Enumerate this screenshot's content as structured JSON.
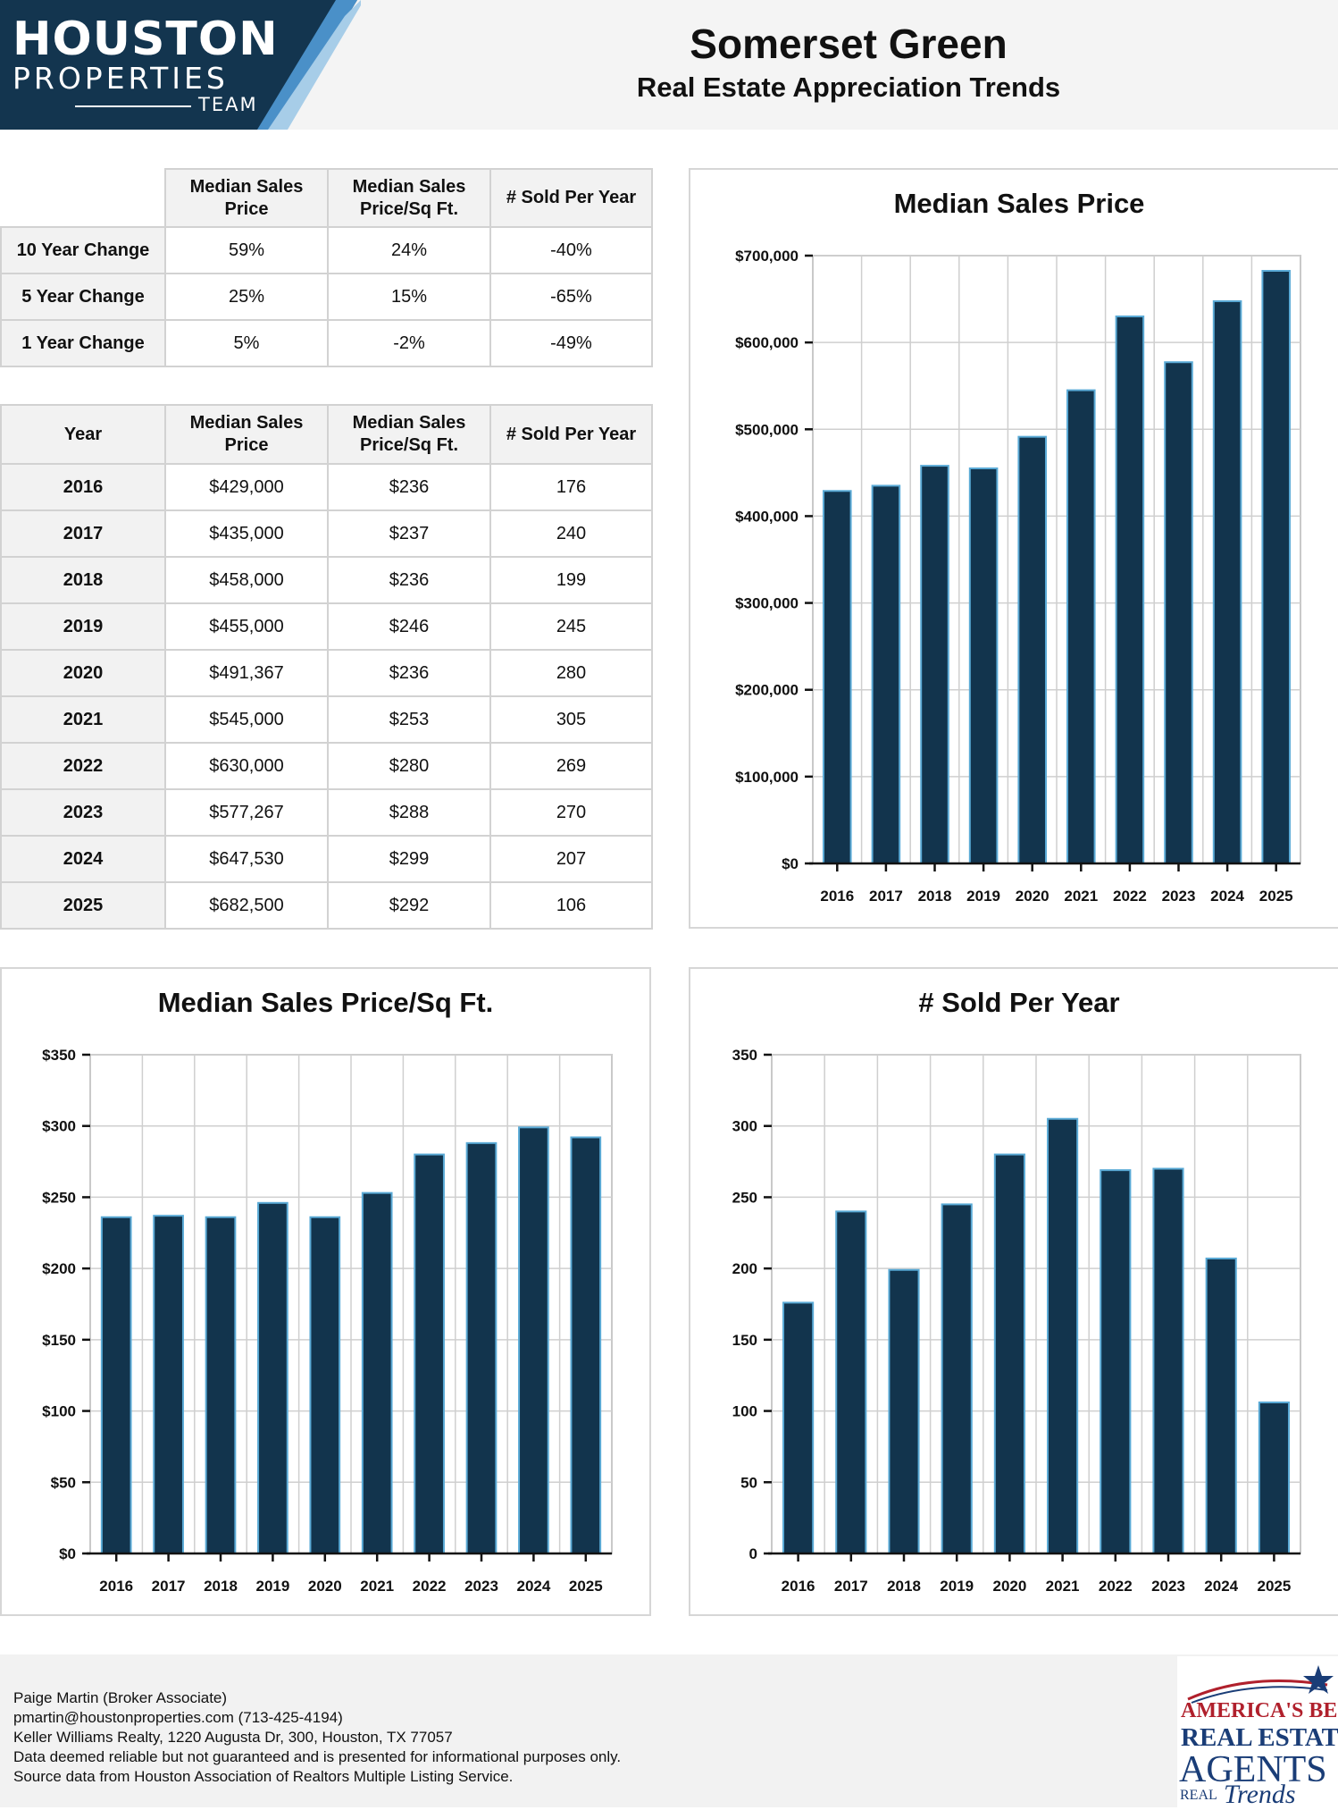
{
  "brand": {
    "line1": "HOUSTON",
    "line2": "PROPERTIES",
    "line3": "TEAM",
    "colors": {
      "navy": "#13354f",
      "light_blue": "#a7cde8",
      "mid_blue": "#4a90c8"
    }
  },
  "header": {
    "title": "Somerset Green",
    "subtitle": "Real Estate Appreciation Trends"
  },
  "change_table": {
    "columns": [
      "Median Sales Price",
      "Median Sales Price/Sq Ft.",
      "# Sold Per Year"
    ],
    "rows": [
      {
        "label": "10 Year Change",
        "price": "59%",
        "sqft": "24%",
        "sold": "-40%"
      },
      {
        "label": "5 Year Change",
        "price": "25%",
        "sqft": "15%",
        "sold": "-65%"
      },
      {
        "label": "1 Year Change",
        "price": "5%",
        "sqft": "-2%",
        "sold": "-49%"
      }
    ]
  },
  "year_table": {
    "columns": [
      "Year",
      "Median Sales Price",
      "Median Sales Price/Sq Ft.",
      "# Sold Per Year"
    ],
    "rows": [
      {
        "year": "2016",
        "price": "$429,000",
        "sqft": "$236",
        "sold": "176"
      },
      {
        "year": "2017",
        "price": "$435,000",
        "sqft": "$237",
        "sold": "240"
      },
      {
        "year": "2018",
        "price": "$458,000",
        "sqft": "$236",
        "sold": "199"
      },
      {
        "year": "2019",
        "price": "$455,000",
        "sqft": "$246",
        "sold": "245"
      },
      {
        "year": "2020",
        "price": "$491,367",
        "sqft": "$236",
        "sold": "280"
      },
      {
        "year": "2021",
        "price": "$545,000",
        "sqft": "$253",
        "sold": "305"
      },
      {
        "year": "2022",
        "price": "$630,000",
        "sqft": "$280",
        "sold": "269"
      },
      {
        "year": "2023",
        "price": "$577,267",
        "sqft": "$288",
        "sold": "270"
      },
      {
        "year": "2024",
        "price": "$647,530",
        "sqft": "$299",
        "sold": "207"
      },
      {
        "year": "2025",
        "price": "$682,500",
        "sqft": "$292",
        "sold": "106"
      }
    ]
  },
  "chart_data": [
    {
      "id": "price",
      "type": "bar",
      "title": "Median Sales Price",
      "categories": [
        "2016",
        "2017",
        "2018",
        "2019",
        "2020",
        "2021",
        "2022",
        "2023",
        "2024",
        "2025"
      ],
      "values": [
        429000,
        435000,
        458000,
        455000,
        491367,
        545000,
        630000,
        577267,
        647530,
        682500
      ],
      "ylim": [
        0,
        700000
      ],
      "yticks": [
        0,
        100000,
        200000,
        300000,
        400000,
        500000,
        600000,
        700000
      ],
      "ytick_labels": [
        "$0",
        "$100,000",
        "$200,000",
        "$300,000",
        "$400,000",
        "$500,000",
        "$600,000",
        "$700,000"
      ],
      "xlabel": "",
      "ylabel": "",
      "grid": true,
      "bar_color": "#12344d",
      "bar_edge": "#5aaad6"
    },
    {
      "id": "sqft",
      "type": "bar",
      "title": "Median Sales Price/Sq Ft.",
      "categories": [
        "2016",
        "2017",
        "2018",
        "2019",
        "2020",
        "2021",
        "2022",
        "2023",
        "2024",
        "2025"
      ],
      "values": [
        236,
        237,
        236,
        246,
        236,
        253,
        280,
        288,
        299,
        292
      ],
      "ylim": [
        0,
        350
      ],
      "yticks": [
        0,
        50,
        100,
        150,
        200,
        250,
        300,
        350
      ],
      "ytick_labels": [
        "$0",
        "$50",
        "$100",
        "$150",
        "$200",
        "$250",
        "$300",
        "$350"
      ],
      "xlabel": "",
      "ylabel": "",
      "grid": true,
      "bar_color": "#12344d",
      "bar_edge": "#5aaad6"
    },
    {
      "id": "sold",
      "type": "bar",
      "title": "# Sold Per Year",
      "categories": [
        "2016",
        "2017",
        "2018",
        "2019",
        "2020",
        "2021",
        "2022",
        "2023",
        "2024",
        "2025"
      ],
      "values": [
        176,
        240,
        199,
        245,
        280,
        305,
        269,
        270,
        207,
        106
      ],
      "ylim": [
        0,
        350
      ],
      "yticks": [
        0,
        50,
        100,
        150,
        200,
        250,
        300,
        350
      ],
      "ytick_labels": [
        "0",
        "50",
        "100",
        "150",
        "200",
        "250",
        "300",
        "350"
      ],
      "xlabel": "",
      "ylabel": "",
      "grid": true,
      "bar_color": "#12344d",
      "bar_edge": "#5aaad6"
    }
  ],
  "footer": {
    "lines": [
      "Paige Martin (Broker Associate)",
      "pmartin@houstonproperties.com (713-425-4194)",
      "Keller Williams Realty, 1220 Augusta Dr, 300, Houston, TX 77057",
      "Data deemed reliable but not guaranteed and is presented for informational purposes only.",
      "Source data from Houston Association of Realtors Multiple Listing Service."
    ]
  },
  "badge": {
    "line1": "AMERICA'S BEST",
    "line2": "REAL ESTATE",
    "line3": "AGENTS",
    "line4": "REAL",
    "line5": "Trends",
    "colors": {
      "red": "#b0202c",
      "blue": "#1a3d77"
    }
  }
}
